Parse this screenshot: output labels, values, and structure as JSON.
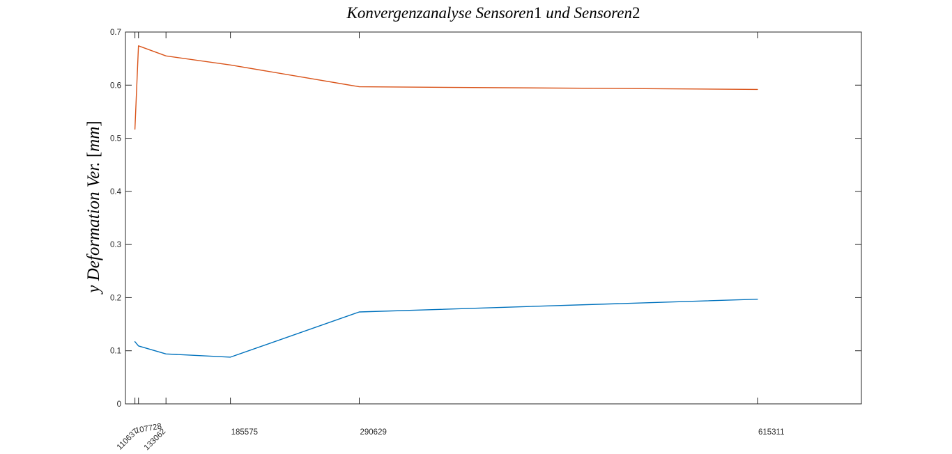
{
  "chart_data": {
    "type": "line",
    "title": "Konvergenzanalyse Sensoren1 und Sensoren2",
    "title_parts": {
      "t1": "Konvergenzanalyse Sensoren",
      "n1": "1",
      "t2": " und Sensoren",
      "n2": "2"
    },
    "xlabel": "",
    "ylabel": "y Deformation Ver. [mm]",
    "ylabel_parts": {
      "pre": "y Deformation Ver. ",
      "open": "[",
      "unit": "mm",
      "close": "]"
    },
    "x": [
      107728,
      110637,
      133062,
      185575,
      290629,
      615311
    ],
    "series": [
      {
        "name": "Sensoren1",
        "color": "#D95319",
        "values": [
          0.517,
          0.674,
          0.655,
          0.638,
          0.597,
          0.592
        ]
      },
      {
        "name": "Sensoren2",
        "color": "#0072BD",
        "values": [
          0.117,
          0.109,
          0.094,
          0.088,
          0.173,
          0.197
        ]
      }
    ],
    "xlim": [
      100000,
      700000
    ],
    "ylim": [
      0,
      0.7
    ],
    "y_ticks": [
      0,
      0.1,
      0.2,
      0.3,
      0.4,
      0.5,
      0.6,
      0.7
    ],
    "y_tick_labels": [
      "0",
      "0.1",
      "0.2",
      "0.3",
      "0.4",
      "0.5",
      "0.6",
      "0.7"
    ],
    "x_ticks": [
      {
        "value": 107728,
        "label": "107728",
        "rotation": -10,
        "anchor": "start"
      },
      {
        "value": 110637,
        "label": "110637",
        "rotation": -45,
        "anchor": "end"
      },
      {
        "value": 133062,
        "label": "133062",
        "rotation": -45,
        "anchor": "end"
      },
      {
        "value": 185575,
        "label": "185575",
        "rotation": 0,
        "anchor": "start"
      },
      {
        "value": 290629,
        "label": "290629",
        "rotation": 0,
        "anchor": "start"
      },
      {
        "value": 615311,
        "label": "615311",
        "rotation": 0,
        "anchor": "start"
      }
    ],
    "grid": false,
    "legend": "none",
    "box": true,
    "tick_direction": "in",
    "axis_color": "#262626",
    "background": "#FFFFFF"
  }
}
